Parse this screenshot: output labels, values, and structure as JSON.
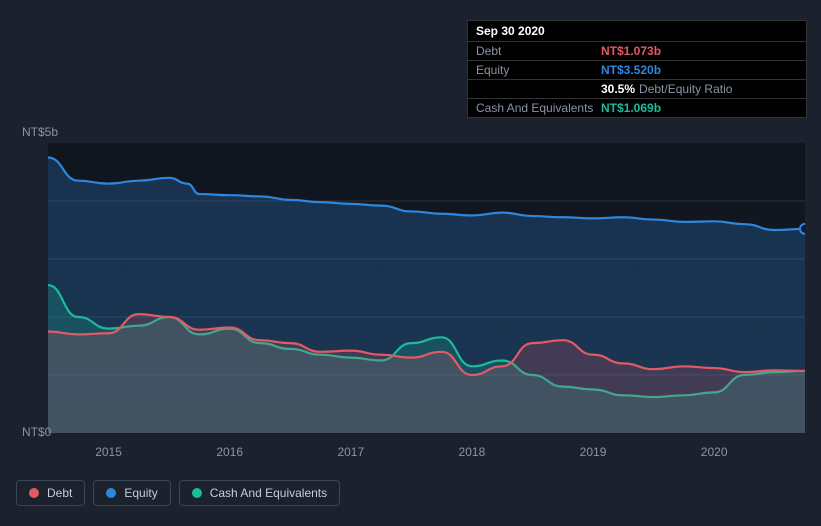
{
  "background_color": "#1b222d",
  "plot_background_color": "#141a24",
  "text_color": "#8a94a6",
  "tooltip": {
    "date": "Sep 30 2020",
    "rows": [
      {
        "label": "Debt",
        "value": "NT$1.073b",
        "color": "#e15b64"
      },
      {
        "label": "Equity",
        "value": "NT$3.520b",
        "color": "#2e86de"
      },
      {
        "label": "",
        "value": "30.5%",
        "extra": "Debt/Equity Ratio",
        "color": "#ffffff"
      },
      {
        "label": "Cash And Equivalents",
        "value": "NT$1.069b",
        "color": "#1abc9c"
      }
    ]
  },
  "chart": {
    "type": "area",
    "ylim": [
      0,
      5
    ],
    "y_unit_prefix": "NT$",
    "y_unit_suffix": "b",
    "yticks": [
      0,
      5
    ],
    "xlim": [
      2014.5,
      2020.75
    ],
    "xticks": [
      2015,
      2016,
      2017,
      2018,
      2019,
      2020
    ],
    "grid_color": "#2a3240",
    "series": [
      {
        "name": "Equity",
        "color": "#2e86de",
        "fill_opacity": 0.25,
        "line_width": 2.2,
        "data": [
          [
            2014.5,
            4.75
          ],
          [
            2014.75,
            4.35
          ],
          [
            2015,
            4.3
          ],
          [
            2015.25,
            4.35
          ],
          [
            2015.5,
            4.4
          ],
          [
            2015.65,
            4.3
          ],
          [
            2015.75,
            4.12
          ],
          [
            2016,
            4.1
          ],
          [
            2016.25,
            4.08
          ],
          [
            2016.5,
            4.02
          ],
          [
            2016.75,
            3.98
          ],
          [
            2017,
            3.95
          ],
          [
            2017.25,
            3.92
          ],
          [
            2017.5,
            3.82
          ],
          [
            2017.75,
            3.78
          ],
          [
            2018,
            3.75
          ],
          [
            2018.25,
            3.8
          ],
          [
            2018.5,
            3.74
          ],
          [
            2018.75,
            3.72
          ],
          [
            2019,
            3.7
          ],
          [
            2019.25,
            3.72
          ],
          [
            2019.5,
            3.68
          ],
          [
            2019.75,
            3.64
          ],
          [
            2020,
            3.65
          ],
          [
            2020.25,
            3.6
          ],
          [
            2020.5,
            3.5
          ],
          [
            2020.75,
            3.52
          ]
        ]
      },
      {
        "name": "Cash And Equivalents",
        "color": "#1abc9c",
        "fill_opacity": 0.22,
        "line_width": 2.2,
        "data": [
          [
            2014.5,
            2.55
          ],
          [
            2014.75,
            2.0
          ],
          [
            2015,
            1.8
          ],
          [
            2015.25,
            1.85
          ],
          [
            2015.5,
            2.0
          ],
          [
            2015.75,
            1.7
          ],
          [
            2016,
            1.8
          ],
          [
            2016.25,
            1.55
          ],
          [
            2016.5,
            1.45
          ],
          [
            2016.75,
            1.35
          ],
          [
            2017,
            1.3
          ],
          [
            2017.25,
            1.25
          ],
          [
            2017.5,
            1.55
          ],
          [
            2017.75,
            1.65
          ],
          [
            2018,
            1.15
          ],
          [
            2018.25,
            1.25
          ],
          [
            2018.5,
            1.0
          ],
          [
            2018.75,
            0.8
          ],
          [
            2019,
            0.75
          ],
          [
            2019.25,
            0.65
          ],
          [
            2019.5,
            0.62
          ],
          [
            2019.75,
            0.65
          ],
          [
            2020,
            0.7
          ],
          [
            2020.25,
            1.0
          ],
          [
            2020.5,
            1.05
          ],
          [
            2020.75,
            1.07
          ]
        ]
      },
      {
        "name": "Debt",
        "color": "#e15b64",
        "fill_opacity": 0.2,
        "line_width": 2.2,
        "data": [
          [
            2014.5,
            1.75
          ],
          [
            2014.75,
            1.7
          ],
          [
            2015,
            1.72
          ],
          [
            2015.25,
            2.05
          ],
          [
            2015.5,
            2.0
          ],
          [
            2015.75,
            1.78
          ],
          [
            2016,
            1.82
          ],
          [
            2016.25,
            1.6
          ],
          [
            2016.5,
            1.55
          ],
          [
            2016.75,
            1.4
          ],
          [
            2017,
            1.42
          ],
          [
            2017.25,
            1.35
          ],
          [
            2017.5,
            1.3
          ],
          [
            2017.75,
            1.4
          ],
          [
            2018,
            1.0
          ],
          [
            2018.25,
            1.15
          ],
          [
            2018.5,
            1.55
          ],
          [
            2018.75,
            1.6
          ],
          [
            2019,
            1.35
          ],
          [
            2019.25,
            1.2
          ],
          [
            2019.5,
            1.1
          ],
          [
            2019.75,
            1.15
          ],
          [
            2020,
            1.12
          ],
          [
            2020.25,
            1.05
          ],
          [
            2020.5,
            1.08
          ],
          [
            2020.75,
            1.07
          ]
        ]
      }
    ],
    "highlight_x": 2020.75,
    "marker_radius": 5
  },
  "legend": [
    {
      "label": "Debt",
      "color": "#e15b64"
    },
    {
      "label": "Equity",
      "color": "#2e86de"
    },
    {
      "label": "Cash And Equivalents",
      "color": "#1abc9c"
    }
  ]
}
